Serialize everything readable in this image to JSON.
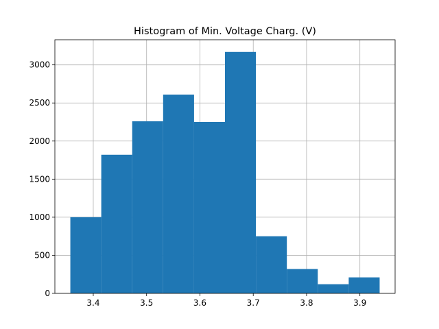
{
  "chart_data": {
    "type": "bar",
    "title": "Histogram of Min. Voltage Charg. (V)",
    "xlabel": "",
    "ylabel": "",
    "bins": [
      {
        "x0": 3.357,
        "x1": 3.415,
        "count": 1000
      },
      {
        "x0": 3.415,
        "x1": 3.473,
        "count": 1820
      },
      {
        "x0": 3.473,
        "x1": 3.531,
        "count": 2260
      },
      {
        "x0": 3.531,
        "x1": 3.589,
        "count": 2610
      },
      {
        "x0": 3.589,
        "x1": 3.647,
        "count": 2250
      },
      {
        "x0": 3.647,
        "x1": 3.705,
        "count": 3170
      },
      {
        "x0": 3.705,
        "x1": 3.763,
        "count": 750
      },
      {
        "x0": 3.763,
        "x1": 3.821,
        "count": 320
      },
      {
        "x0": 3.821,
        "x1": 3.879,
        "count": 120
      },
      {
        "x0": 3.879,
        "x1": 3.937,
        "count": 210
      }
    ],
    "xlim": [
      3.328,
      3.966
    ],
    "ylim": [
      0,
      3330
    ],
    "xticks": [
      3.4,
      3.5,
      3.6,
      3.7,
      3.8,
      3.9
    ],
    "xtick_labels": [
      "3.4",
      "3.5",
      "3.6",
      "3.7",
      "3.8",
      "3.9"
    ],
    "yticks": [
      0,
      500,
      1000,
      1500,
      2000,
      2500,
      3000
    ],
    "ytick_labels": [
      "0",
      "500",
      "1000",
      "1500",
      "2000",
      "2500",
      "3000"
    ],
    "grid": true,
    "colors": {
      "bar": "#1f77b4",
      "grid": "#b0b0b0",
      "axis": "#000000"
    }
  }
}
